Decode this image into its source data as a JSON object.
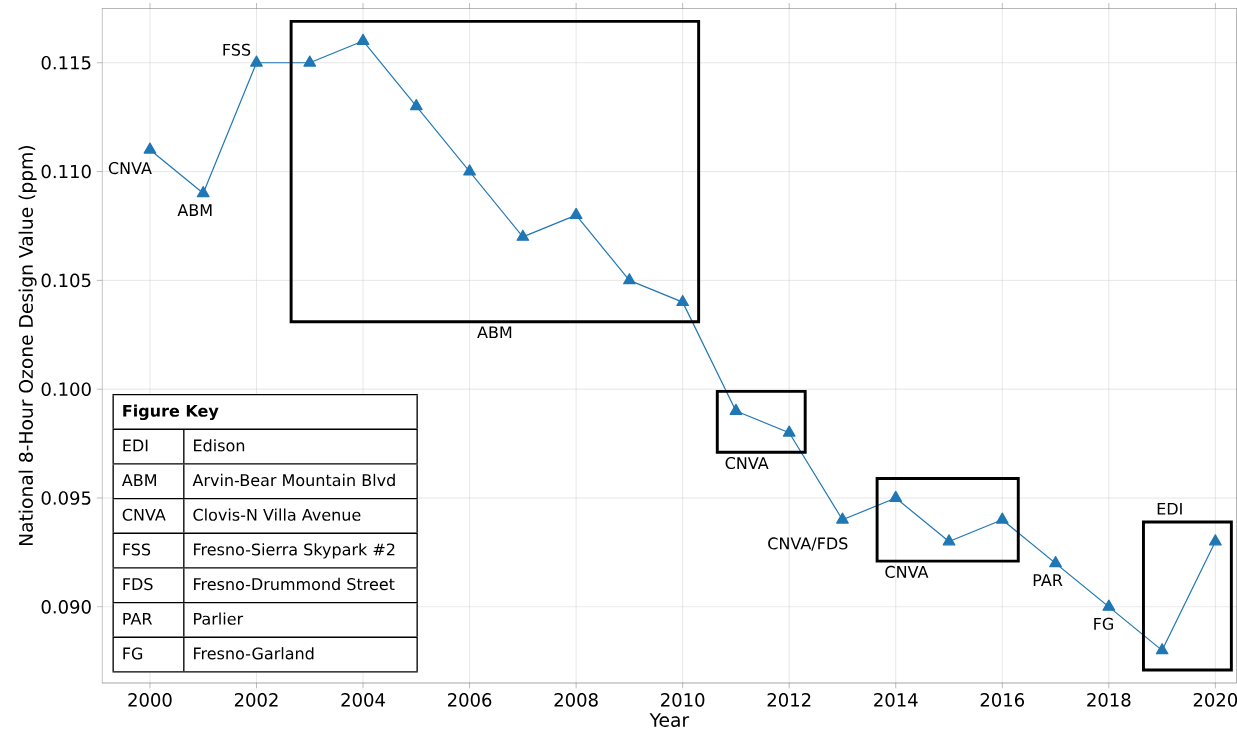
{
  "chart_data": {
    "type": "line",
    "xlabel": "Year",
    "ylabel": "National 8-Hour Ozone Design Value (ppm)",
    "x": [
      2000,
      2001,
      2002,
      2003,
      2004,
      2005,
      2006,
      2007,
      2008,
      2009,
      2010,
      2011,
      2012,
      2013,
      2014,
      2015,
      2016,
      2017,
      2018,
      2019,
      2020
    ],
    "values": [
      0.111,
      0.109,
      0.115,
      0.115,
      0.116,
      0.113,
      0.11,
      0.107,
      0.108,
      0.105,
      0.104,
      0.099,
      0.098,
      0.094,
      0.095,
      0.093,
      0.094,
      0.092,
      0.09,
      0.088,
      0.093
    ],
    "color": "#1f77b4",
    "marker": "triangle",
    "grid": true,
    "xlim": [
      1999.1,
      2020.4
    ],
    "ylim": [
      0.0865,
      0.1175
    ],
    "xticks": [
      2000,
      2002,
      2004,
      2006,
      2008,
      2010,
      2012,
      2014,
      2016,
      2018,
      2020
    ],
    "yticks": [
      {
        "value": 0.09,
        "label": "0.090"
      },
      {
        "value": 0.095,
        "label": "0.095"
      },
      {
        "value": 0.1,
        "label": "0.100"
      },
      {
        "value": 0.105,
        "label": "0.105"
      },
      {
        "value": 0.11,
        "label": "0.110"
      },
      {
        "value": 0.115,
        "label": "0.115"
      }
    ],
    "annotations": [
      {
        "text": "CNVA",
        "x": 2000,
        "y": 0.111
      },
      {
        "text": "ABM",
        "x": 2001,
        "y": 0.109
      },
      {
        "text": "FSS",
        "x": 2002,
        "y": 0.115
      },
      "ABM",
      "CNVA",
      {
        "text": "CNVA/FDS",
        "x": 2013,
        "y": 0.094
      },
      "CNVA",
      {
        "text": "PAR",
        "x": 2017,
        "y": 0.092
      },
      {
        "text": "FG",
        "x": 2018,
        "y": 0.09
      },
      "EDI",
      "Figure Key",
      "EDI",
      "Edison",
      "ABM",
      "Arvin-Bear Mountain Blvd",
      "CNVA",
      "Clovis-N Villa Avenue",
      "FSS",
      "Fresno-Sierra Skypark #2",
      "FDS",
      "Fresno-Drummond Street",
      "PAR",
      "Parlier",
      "FG",
      "Fresno-Garland"
    ]
  }
}
